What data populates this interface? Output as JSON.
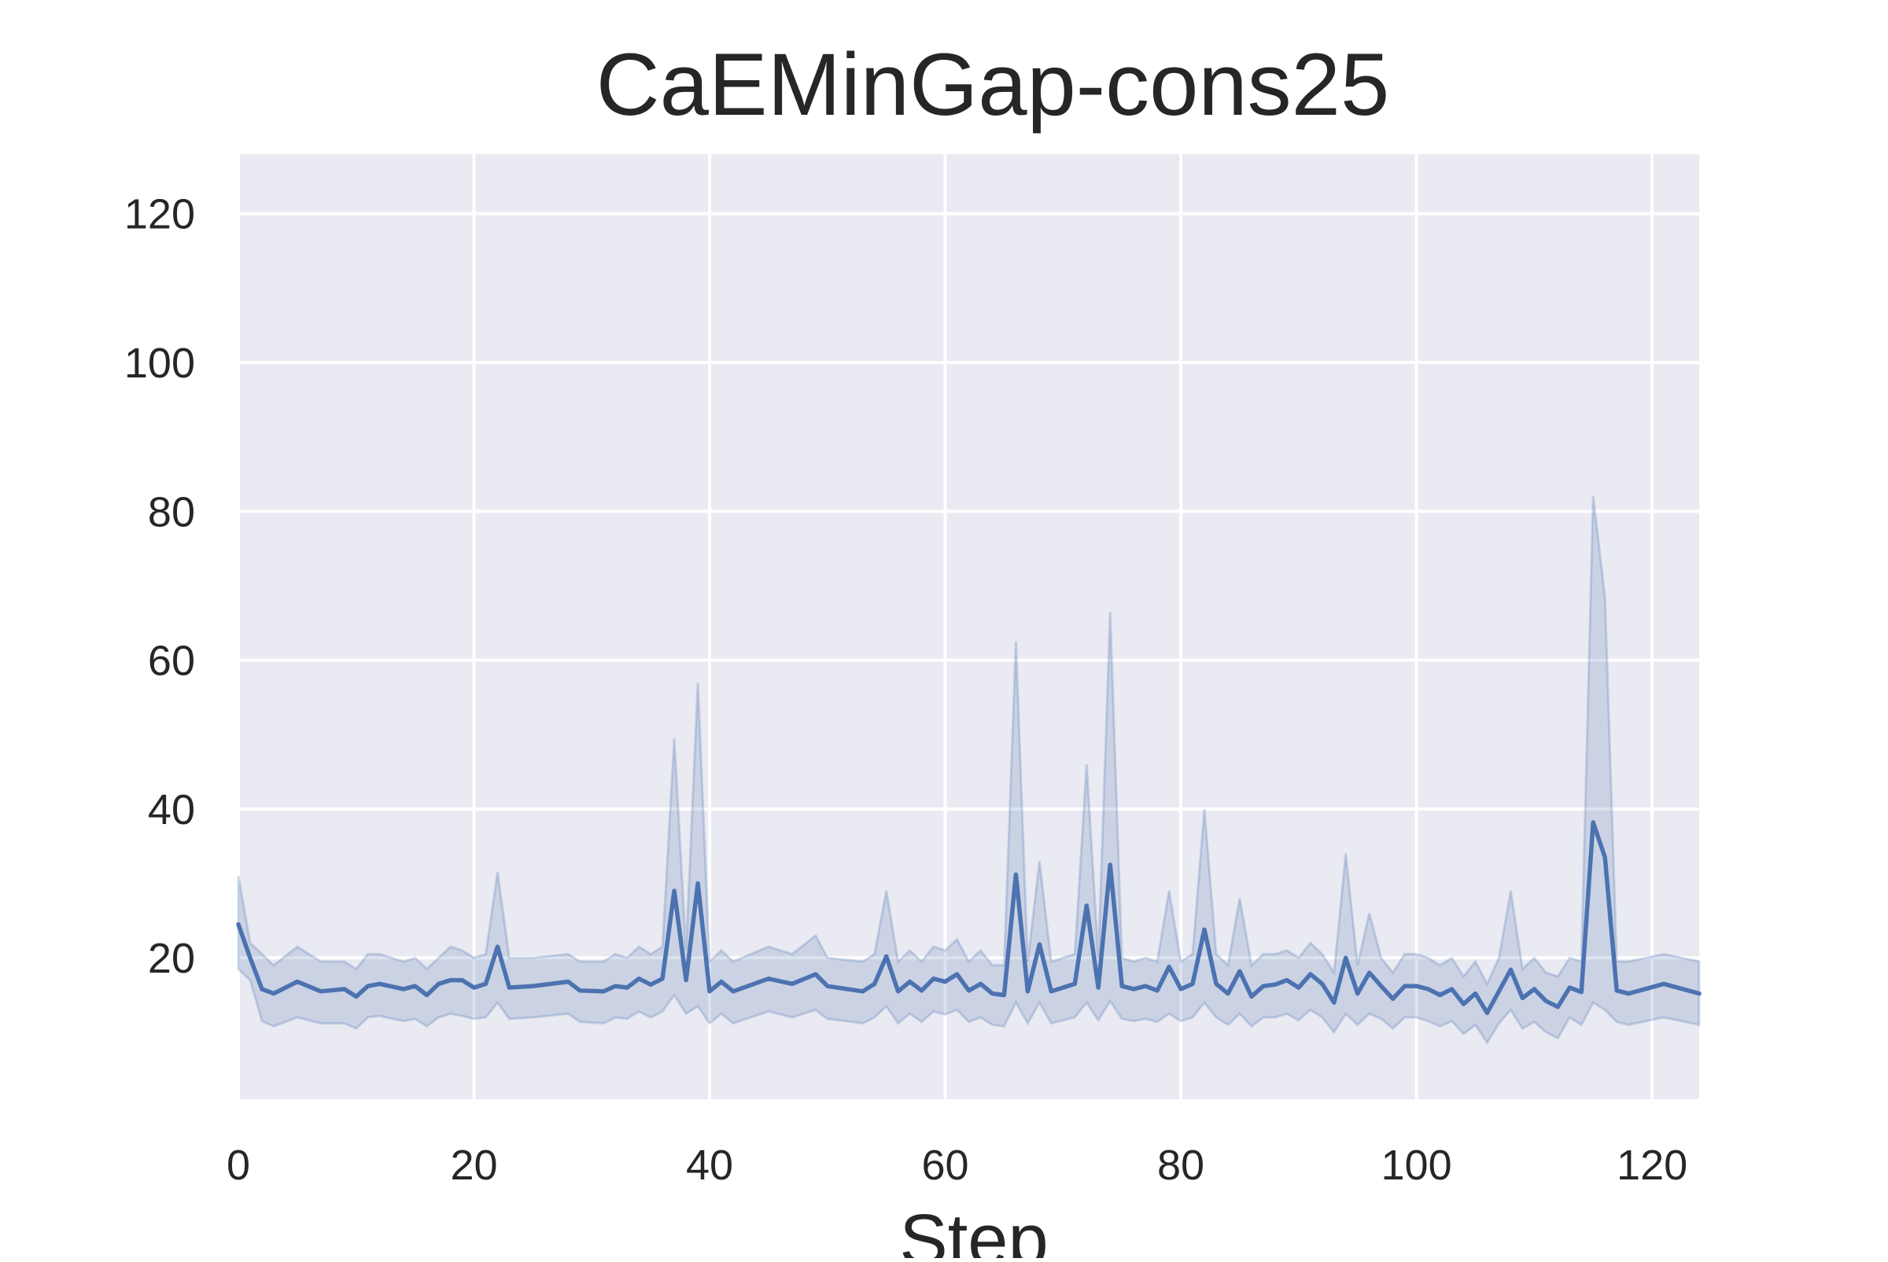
{
  "chart_data": {
    "type": "line",
    "title": "CaEMinGap-cons25",
    "xlabel": "Step",
    "ylabel": "",
    "xlim": [
      0,
      124
    ],
    "ylim": [
      1,
      128
    ],
    "xticks": [
      0,
      20,
      40,
      60,
      80,
      100,
      120
    ],
    "yticks": [
      20,
      40,
      60,
      80,
      100,
      120
    ],
    "grid": true,
    "colors": {
      "background": "#eaeaf2",
      "grid": "#ffffff",
      "line": "#4c72b0",
      "band": "#4c72b0"
    },
    "series": [
      {
        "x": [
          0,
          1,
          2,
          3,
          5,
          7,
          9,
          10,
          11,
          12,
          14,
          15,
          16,
          17,
          18,
          19,
          20,
          21,
          22,
          23,
          25,
          28,
          29,
          31,
          32,
          33,
          34,
          35,
          36,
          37,
          38,
          39,
          40,
          41,
          42,
          45,
          47,
          49,
          50,
          53,
          54,
          55,
          56,
          57,
          58,
          59,
          60,
          61,
          62,
          63,
          64,
          65,
          66,
          67,
          68,
          69,
          70,
          71,
          72,
          73,
          74,
          75,
          76,
          77,
          78,
          79,
          80,
          81,
          82,
          83,
          84,
          85,
          86,
          87,
          88,
          89,
          90,
          91,
          92,
          93,
          94,
          95,
          96,
          97,
          98,
          99,
          100,
          101,
          102,
          103,
          104,
          105,
          106,
          107,
          108,
          109,
          110,
          111,
          112,
          113,
          114,
          115,
          116,
          117,
          118,
          121,
          124
        ],
        "y": [
          24.5,
          20,
          15.8,
          15.2,
          16.8,
          15.5,
          15.8,
          14.8,
          16.2,
          16.5,
          15.8,
          16.2,
          15,
          16.5,
          17,
          17,
          16,
          16.5,
          21.5,
          16,
          16.2,
          16.8,
          15.6,
          15.5,
          16.2,
          16,
          17.2,
          16.4,
          17.2,
          29,
          17,
          30,
          15.5,
          16.8,
          15.5,
          17.2,
          16.5,
          17.8,
          16.2,
          15.5,
          16.5,
          20.2,
          15.5,
          16.8,
          15.6,
          17.2,
          16.8,
          17.8,
          15.6,
          16.5,
          15.2,
          15.0,
          31.2,
          15.5,
          21.8,
          15.5,
          16.0,
          16.5,
          27.0,
          16.0,
          32.5,
          16.2,
          15.8,
          16.2,
          15.6,
          18.8,
          15.8,
          16.5,
          23.8,
          16.5,
          15.2,
          18.2,
          14.8,
          16.2,
          16.4,
          17,
          16,
          17.8,
          16.5,
          14,
          20,
          15.2,
          18,
          16.2,
          14.5,
          16.2,
          16.2,
          15.8,
          15,
          15.8,
          13.8,
          15.2,
          12.6,
          15.5,
          18.4,
          14.6,
          15.8,
          14.2,
          13.4,
          16,
          15.4,
          38.2,
          33.5,
          15.6,
          15.2,
          16.5,
          15.2
        ],
        "band_upper": [
          31,
          22,
          20.5,
          19,
          21.5,
          19.5,
          19.5,
          18.5,
          20.5,
          20.5,
          19.5,
          20,
          18.5,
          20,
          21.5,
          21,
          20,
          20.5,
          31.5,
          20,
          20,
          20.5,
          19.5,
          19.5,
          20.5,
          20,
          21.5,
          20.5,
          21.5,
          49.5,
          21,
          57,
          19.5,
          21,
          19.5,
          21.5,
          20.5,
          23,
          20,
          19.5,
          20.5,
          29,
          19.5,
          21,
          19.5,
          21.5,
          21,
          22.5,
          19.5,
          21,
          19,
          19,
          62.5,
          19.5,
          33,
          19.5,
          20,
          20.5,
          46,
          20,
          66.5,
          20,
          19.5,
          20,
          19.5,
          29,
          19.5,
          20.5,
          40,
          20.5,
          19,
          28,
          19,
          20.5,
          20.5,
          21,
          20,
          22,
          20.5,
          18,
          34,
          19,
          26,
          20,
          18,
          20.5,
          20.5,
          20,
          19,
          20,
          17.5,
          19.5,
          16.5,
          20,
          29,
          18.5,
          20,
          18,
          17.5,
          20,
          19.5,
          82,
          68.5,
          19.5,
          19.5,
          20.5,
          19.5
        ],
        "band_lower": [
          18.5,
          17,
          11.5,
          10.8,
          12,
          11.2,
          11.2,
          10.5,
          12,
          12.2,
          11.5,
          11.8,
          10.8,
          12,
          12.5,
          12.2,
          11.8,
          12,
          14,
          11.8,
          12,
          12.5,
          11.4,
          11.2,
          12,
          11.8,
          12.8,
          12,
          12.8,
          15,
          12.5,
          13.5,
          11.2,
          12.5,
          11.2,
          12.8,
          12,
          13,
          11.8,
          11.2,
          12,
          13.5,
          11.2,
          12.5,
          11.4,
          12.8,
          12.4,
          13,
          11.4,
          12,
          11,
          10.8,
          14,
          11.2,
          14,
          11.2,
          11.6,
          12,
          14,
          11.6,
          14.2,
          11.8,
          11.5,
          11.8,
          11.4,
          12.5,
          11.5,
          12,
          14,
          12,
          11,
          12.5,
          10.8,
          12,
          12,
          12.5,
          11.6,
          13,
          12,
          10,
          12.5,
          11,
          12.5,
          11.8,
          10.5,
          12,
          12,
          11.5,
          10.8,
          11.5,
          9.8,
          11,
          8.6,
          11.2,
          13,
          10.5,
          11.4,
          10,
          9.2,
          12,
          11,
          14,
          13,
          11.4,
          11,
          12,
          11
        ]
      }
    ]
  }
}
